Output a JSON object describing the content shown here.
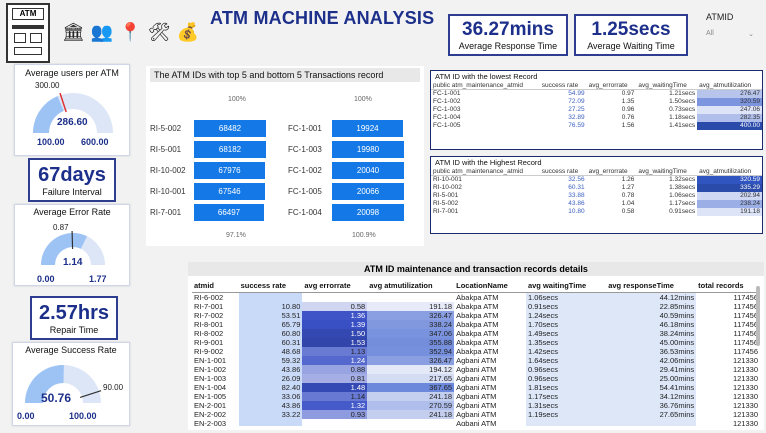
{
  "header": {
    "title": "ATM MACHINE ANALYSIS",
    "logo_text": "ATM",
    "nav_icons": [
      "bank-icon",
      "users-icon",
      "location-icon",
      "tools-chart-icon",
      "coins-chart-icon"
    ]
  },
  "kpis": {
    "response": {
      "value": "36.27mins",
      "label": "Average Response Time"
    },
    "waiting": {
      "value": "1.25secs",
      "label": "Average Waiting Time"
    },
    "failure": {
      "value": "67days",
      "label": "Failure Interval"
    },
    "repair": {
      "value": "2.57hrs",
      "label": "Repair Time"
    }
  },
  "slicer": {
    "label": "ATMID",
    "value": "All"
  },
  "gauges": {
    "users": {
      "title": "Average users per ATM",
      "value": "286.60",
      "value_num": 286.6,
      "target": "300.00",
      "min": "100.00",
      "max": "600.00",
      "min_num": 100,
      "max_num": 600
    },
    "error": {
      "title": "Average Error Rate",
      "value": "1.14",
      "value_num": 1.14,
      "target": "0.87",
      "min": "0.00",
      "max": "1.77",
      "min_num": 0,
      "max_num": 1.77
    },
    "success": {
      "title": "Average Success Rate",
      "value": "50.76",
      "value_num": 50.76,
      "target": "90.00",
      "min": "0.00",
      "max": "100.00",
      "min_num": 0,
      "max_num": 100
    }
  },
  "top_bottom": {
    "title": "The ATM IDs with top 5 and bottom 5 Transactions record",
    "left": {
      "top_pct": "100%",
      "bottom_pct": "97.1%",
      "items": [
        {
          "id": "RI-5-002",
          "value": "68482",
          "num": 68482
        },
        {
          "id": "RI-5-001",
          "value": "68182",
          "num": 68182
        },
        {
          "id": "RI-10-002",
          "value": "67976",
          "num": 67976
        },
        {
          "id": "RI-10-001",
          "value": "67546",
          "num": 67546
        },
        {
          "id": "RI-7-001",
          "value": "66497",
          "num": 66497
        }
      ]
    },
    "right": {
      "top_pct": "100%",
      "bottom_pct": "100.9%",
      "items": [
        {
          "id": "FC-1-001",
          "value": "19924",
          "num": 19924
        },
        {
          "id": "FC-1-003",
          "value": "19980",
          "num": 19980
        },
        {
          "id": "FC-1-002",
          "value": "20040",
          "num": 20040
        },
        {
          "id": "FC-1-005",
          "value": "20066",
          "num": 20066
        },
        {
          "id": "FC-1-004",
          "value": "20098",
          "num": 20098
        }
      ]
    }
  },
  "lowest": {
    "title": "ATM ID with the lowest Record",
    "columns": [
      "public atm_maintenance_atmid",
      "success rate",
      "avg_errorrate",
      "avg_waitingTime",
      "avg_atmutilization"
    ],
    "rows": [
      [
        "FC-1-001",
        "54.99",
        "0.97",
        "1.21secs",
        "276.47"
      ],
      [
        "FC-1-002",
        "72.09",
        "1.35",
        "1.50secs",
        "320.59"
      ],
      [
        "FC-1-003",
        "27.25",
        "0.96",
        "0.73secs",
        "247.06"
      ],
      [
        "FC-1-004",
        "32.89",
        "0.76",
        "1.18secs",
        "282.35"
      ],
      [
        "FC-1-005",
        "76.59",
        "1.56",
        "1.41secs",
        "400.00"
      ]
    ]
  },
  "highest": {
    "title": "ATM ID with the Highest Record",
    "columns": [
      "public atm_maintenance_atmid",
      "success rate",
      "avg_errorrate",
      "avg_waitingTime",
      "avg_atmutilization"
    ],
    "rows": [
      [
        "RI-10-001",
        "32.56",
        "1.26",
        "1.32secs",
        "320.59"
      ],
      [
        "RI-10-002",
        "60.31",
        "1.27",
        "1.38secs",
        "335.29"
      ],
      [
        "RI-5-001",
        "33.88",
        "0.78",
        "1.06secs",
        "202.94"
      ],
      [
        "RI-5-002",
        "43.86",
        "1.04",
        "1.17secs",
        "238.24"
      ],
      [
        "RI-7-001",
        "10.80",
        "0.58",
        "0.91secs",
        "191.18"
      ]
    ]
  },
  "details": {
    "title": "ATM ID maintenance and transaction records details",
    "columns": [
      "atmid",
      "success rate",
      "avg errorrate",
      "avg atmutilization",
      "LocationName",
      "avg waitingTime",
      "avg responseTime",
      "total records"
    ],
    "rows": [
      [
        "RI-6-002",
        "",
        "",
        "",
        "Abakpa ATM",
        "1.06secs",
        "44.12mins",
        "117456"
      ],
      [
        "RI-7-001",
        "10.80",
        "0.58",
        "191.18",
        "Abakpa ATM",
        "0.91secs",
        "22.85mins",
        "117456"
      ],
      [
        "RI-7-002",
        "53.51",
        "1.36",
        "326.47",
        "Abakpa ATM",
        "1.24secs",
        "40.59mins",
        "117456"
      ],
      [
        "RI-8-001",
        "65.79",
        "1.39",
        "338.24",
        "Abakpa ATM",
        "1.70secs",
        "46.18mins",
        "117456"
      ],
      [
        "RI-8-002",
        "60.80",
        "1.50",
        "347.06",
        "Abakpa ATM",
        "1.49secs",
        "38.24mins",
        "117456"
      ],
      [
        "RI-9-001",
        "60.31",
        "1.53",
        "355.88",
        "Abakpa ATM",
        "1.35secs",
        "45.00mins",
        "117456"
      ],
      [
        "RI-9-002",
        "48.68",
        "1.13",
        "352.94",
        "Abakpa ATM",
        "1.42secs",
        "36.53mins",
        "117456"
      ],
      [
        "EN-1-001",
        "59.32",
        "1.24",
        "326.47",
        "Agbani ATM",
        "1.64secs",
        "42.06mins",
        "121330"
      ],
      [
        "EN-1-002",
        "43.86",
        "0.88",
        "194.12",
        "Agbani ATM",
        "0.96secs",
        "29.41mins",
        "121330"
      ],
      [
        "EN-1-003",
        "26.09",
        "0.81",
        "217.65",
        "Agbani ATM",
        "0.96secs",
        "25.00mins",
        "121330"
      ],
      [
        "EN-1-004",
        "82.40",
        "1.48",
        "367.65",
        "Agbani ATM",
        "1.81secs",
        "54.41mins",
        "121330"
      ],
      [
        "EN-1-005",
        "33.06",
        "1.14",
        "241.18",
        "Agbani ATM",
        "1.17secs",
        "34.12mins",
        "121330"
      ],
      [
        "EN-2-001",
        "43.86",
        "1.32",
        "270.59",
        "Agbani ATM",
        "1.31secs",
        "36.76mins",
        "121330"
      ],
      [
        "EN-2-002",
        "33.22",
        "0.93",
        "241.18",
        "Agbani ATM",
        "1.19secs",
        "27.65mins",
        "121330"
      ],
      [
        "EN-2-003",
        "",
        "",
        "",
        "Agbani ATM",
        "",
        "",
        "121330"
      ]
    ]
  }
}
